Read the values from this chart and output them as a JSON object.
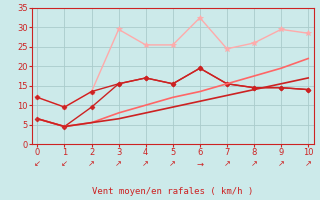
{
  "x": [
    0,
    1,
    2,
    3,
    4,
    5,
    6,
    7,
    8,
    9,
    10
  ],
  "series": [
    {
      "y": [
        12.0,
        9.5,
        13.5,
        29.5,
        25.5,
        25.5,
        32.5,
        24.5,
        26.0,
        29.5,
        28.5
      ],
      "color": "#ffaaaa",
      "lw": 1.0,
      "marker": "*",
      "ms": 4
    },
    {
      "y": [
        12.0,
        9.5,
        13.5,
        15.5,
        17.0,
        15.5,
        19.5,
        15.5,
        14.5,
        14.5,
        14.0
      ],
      "color": "#cc2222",
      "lw": 1.0,
      "marker": "D",
      "ms": 2.5
    },
    {
      "y": [
        6.5,
        4.5,
        9.5,
        15.5,
        17.0,
        15.5,
        19.5,
        15.5,
        14.5,
        14.5,
        14.0
      ],
      "color": "#cc2222",
      "lw": 1.0,
      "marker": "D",
      "ms": 2.5
    },
    {
      "y": [
        6.5,
        4.5,
        5.5,
        8.0,
        10.0,
        12.0,
        13.5,
        15.5,
        17.5,
        19.5,
        22.0
      ],
      "color": "#ff6666",
      "lw": 1.2,
      "marker": null,
      "ms": 0
    },
    {
      "y": [
        6.5,
        4.5,
        5.5,
        6.5,
        8.0,
        9.5,
        11.0,
        12.5,
        14.0,
        15.5,
        17.0
      ],
      "color": "#cc2222",
      "lw": 1.2,
      "marker": null,
      "ms": 0
    }
  ],
  "arrows": [
    "↙",
    "↙",
    "↗",
    "↗",
    "↗",
    "↗",
    "→",
    "↗",
    "↗",
    "↗",
    "↗"
  ],
  "xlabel": "Vent moyen/en rafales ( km/h )",
  "xlim": [
    -0.2,
    10.2
  ],
  "ylim": [
    0,
    35
  ],
  "yticks": [
    0,
    5,
    10,
    15,
    20,
    25,
    30,
    35
  ],
  "xticks": [
    0,
    1,
    2,
    3,
    4,
    5,
    6,
    7,
    8,
    9,
    10
  ],
  "bg_color": "#cceaea",
  "grid_color": "#aacccc",
  "tick_color": "#cc2222",
  "label_color": "#cc2222",
  "axis_color": "#cc2222"
}
